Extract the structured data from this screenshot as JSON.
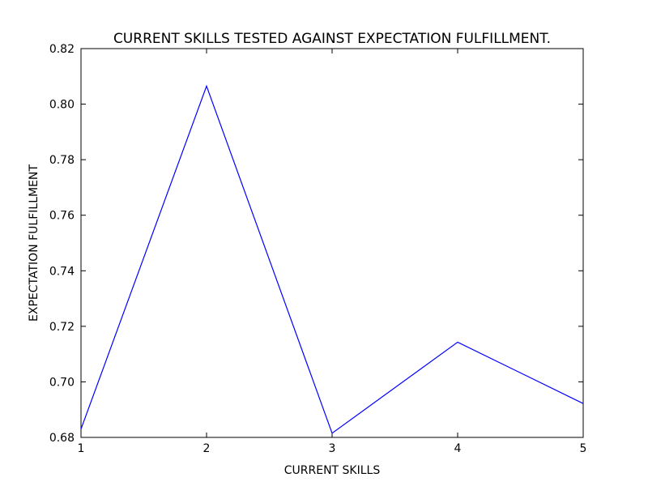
{
  "chart_data": {
    "type": "line",
    "title": "CURRENT SKILLS TESTED AGAINST EXPECTATION FULFILLMENT.",
    "xlabel": "CURRENT SKILLS",
    "ylabel": "EXPECTATION FULFILLMENT",
    "xlim": [
      1,
      5
    ],
    "ylim": [
      0.68,
      0.82
    ],
    "xticks": [
      1,
      2,
      3,
      4,
      5
    ],
    "xtick_labels": [
      "1",
      "2",
      "3",
      "4",
      "5"
    ],
    "yticks": [
      0.68,
      0.7,
      0.72,
      0.74,
      0.76,
      0.78,
      0.8,
      0.82
    ],
    "ytick_labels": [
      "0.68",
      "0.70",
      "0.72",
      "0.74",
      "0.76",
      "0.78",
      "0.80",
      "0.82"
    ],
    "grid": false,
    "series": [
      {
        "color": "#0000ff",
        "x": [
          1,
          2,
          3,
          4,
          5
        ],
        "y": [
          0.683,
          0.8065,
          0.6815,
          0.7143,
          0.6922
        ]
      }
    ]
  }
}
